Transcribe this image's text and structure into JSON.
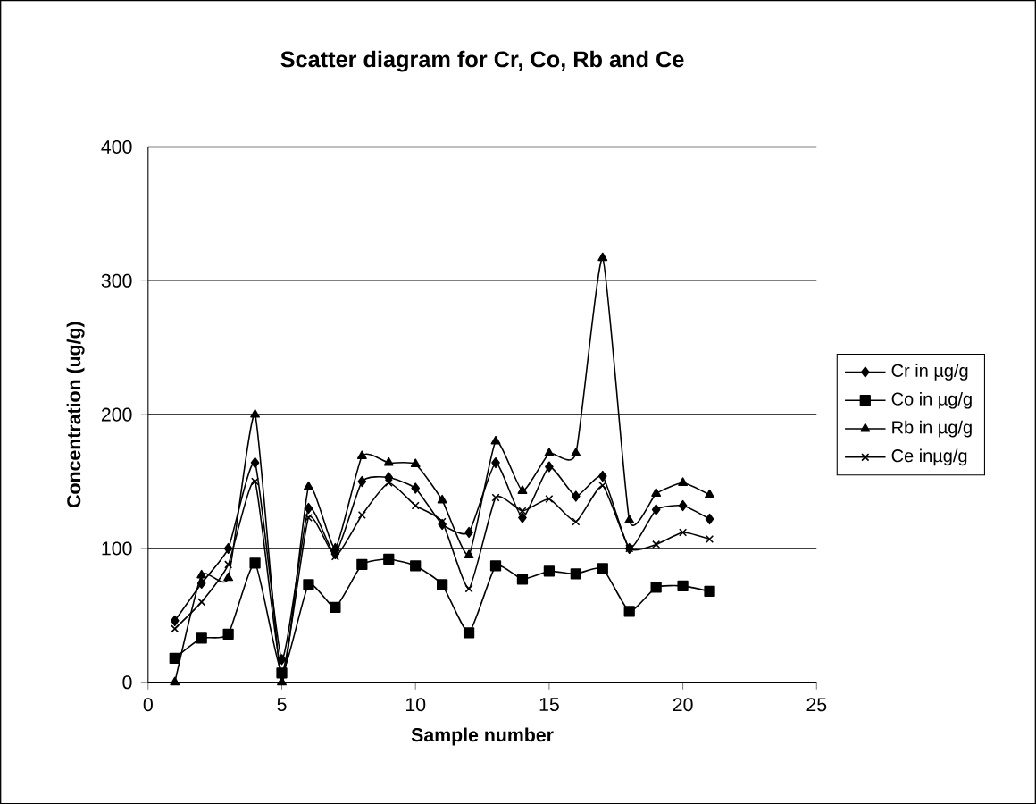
{
  "chart_data": {
    "type": "line",
    "title": "Scatter diagram for Cr, Co, Rb and Ce",
    "xlabel": "Sample number",
    "ylabel": "Concentration (ug/g)",
    "x": [
      1,
      2,
      3,
      4,
      5,
      6,
      7,
      8,
      9,
      10,
      11,
      12,
      13,
      14,
      15,
      16,
      17,
      18,
      19,
      20,
      21
    ],
    "series": [
      {
        "name": "Cr in µg/g",
        "color": "#000000",
        "marker": "diamond",
        "values": [
          46,
          74,
          100,
          164,
          17,
          130,
          96,
          150,
          153,
          145,
          118,
          112,
          164,
          123,
          161,
          139,
          154,
          100,
          129,
          132,
          122
        ]
      },
      {
        "name": "Co in µg/g",
        "color": "#000000",
        "marker": "square",
        "values": [
          18,
          33,
          36,
          89,
          7,
          73,
          56,
          88,
          92,
          87,
          73,
          37,
          87,
          77,
          83,
          81,
          85,
          53,
          71,
          72,
          68
        ]
      },
      {
        "name": "Rb in µg/g",
        "color": "#000000",
        "marker": "triangle",
        "values": [
          0,
          80,
          78,
          200,
          0,
          146,
          100,
          169,
          164,
          163,
          136,
          95,
          180,
          143,
          171,
          171,
          317,
          121,
          141,
          149,
          140
        ]
      },
      {
        "name": "Ce inµg/g",
        "color": "#000000",
        "marker": "cross",
        "values": [
          40,
          60,
          88,
          150,
          7,
          123,
          94,
          125,
          149,
          132,
          120,
          70,
          138,
          128,
          137,
          120,
          147,
          100,
          103,
          112,
          107
        ]
      }
    ],
    "xlim": [
      0,
      25
    ],
    "xticks": [
      0,
      5,
      10,
      15,
      20,
      25
    ],
    "ylim": [
      0,
      400
    ],
    "yticks": [
      0,
      100,
      200,
      300,
      400
    ],
    "grid": "y",
    "legend": "right"
  }
}
